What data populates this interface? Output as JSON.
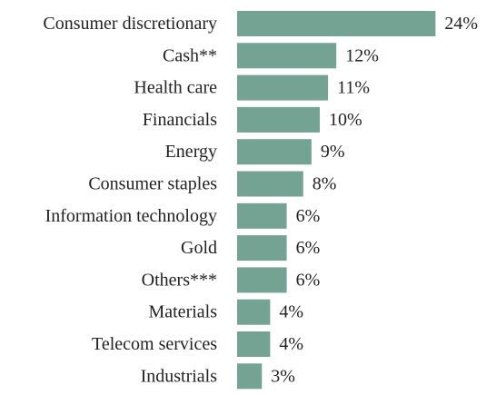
{
  "chart_data": {
    "type": "bar",
    "orientation": "horizontal",
    "categories": [
      "Consumer discretionary",
      "Cash**",
      "Health care",
      "Financials",
      "Energy",
      "Consumer staples",
      "Information technology",
      "Gold",
      "Others***",
      "Materials",
      "Telecom services",
      "Industrials"
    ],
    "values": [
      24,
      12,
      11,
      10,
      9,
      8,
      6,
      6,
      6,
      4,
      4,
      3
    ],
    "value_labels": [
      "24%",
      "12%",
      "11%",
      "10%",
      "9%",
      "8%",
      "6%",
      "6%",
      "6%",
      "4%",
      "4%",
      "3%"
    ],
    "unit": "%",
    "xlim": [
      0,
      24
    ],
    "grid": false,
    "colors": {
      "bar": "#74a393",
      "text": "#222222"
    }
  }
}
